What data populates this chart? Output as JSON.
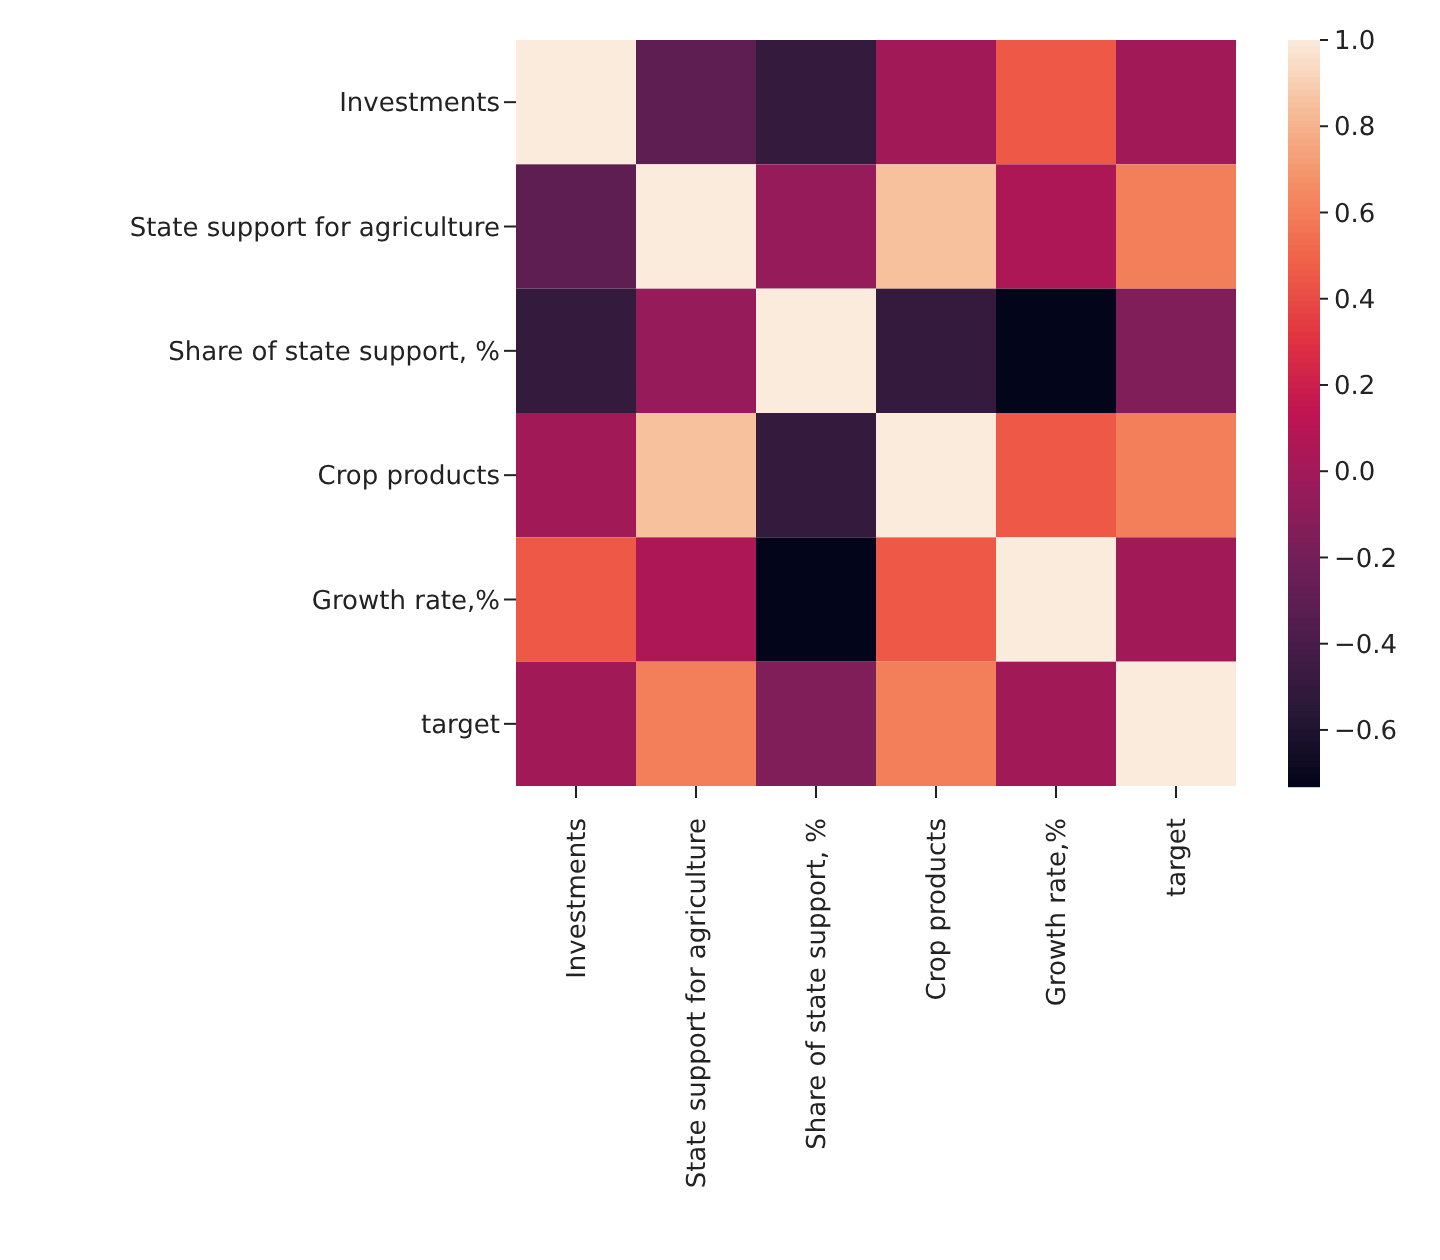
{
  "chart_data": {
    "type": "heatmap",
    "categories": [
      "Investments",
      "State support for agriculture",
      "Share of state support, %",
      "Crop products",
      "Growth rate,%",
      "target"
    ],
    "y_categories": [
      "Investments",
      "State support for agriculture",
      "Share of state support, %",
      "Crop products",
      "Growth rate,%",
      "target"
    ],
    "cells": [
      [
        1.0,
        -0.3,
        -0.5,
        0.0,
        0.45,
        0.0
      ],
      [
        -0.3,
        1.0,
        -0.05,
        0.85,
        0.05,
        0.6
      ],
      [
        -0.5,
        -0.05,
        1.0,
        -0.5,
        -0.73,
        -0.15
      ],
      [
        0.0,
        0.85,
        -0.5,
        1.0,
        0.45,
        0.6
      ],
      [
        0.45,
        0.05,
        -0.73,
        0.45,
        1.0,
        0.0
      ],
      [
        0.0,
        0.6,
        -0.15,
        0.6,
        0.0,
        1.0
      ]
    ],
    "clim": [
      -0.73,
      1.0
    ],
    "cticks": [
      {
        "value": -0.6,
        "label": "−0.6"
      },
      {
        "value": -0.4,
        "label": "−0.4"
      },
      {
        "value": -0.2,
        "label": "−0.2"
      },
      {
        "value": 0,
        "label": "0.0"
      },
      {
        "value": 0.2,
        "label": "0.2"
      },
      {
        "value": 0.4,
        "label": "0.4"
      },
      {
        "value": 0.6,
        "label": "0.6"
      },
      {
        "value": 0.8,
        "label": "0.8"
      },
      {
        "value": 1,
        "label": "1.0"
      }
    ]
  }
}
